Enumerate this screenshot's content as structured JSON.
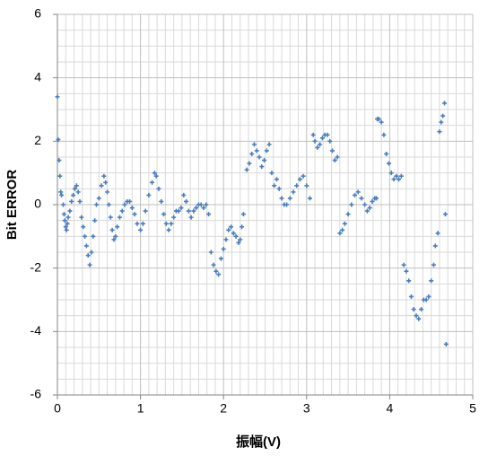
{
  "chart_data": {
    "type": "scatter",
    "xlabel": "振幅(V)",
    "ylabel": "Bit ERROR",
    "xlim": [
      0,
      5
    ],
    "xticks": [
      0,
      1,
      2,
      3,
      4,
      5
    ],
    "ylim": [
      -6,
      6
    ],
    "yticks": [
      -6,
      -4,
      -2,
      0,
      2,
      4,
      6
    ],
    "grid": true,
    "series": [
      {
        "color": "#4a7ebb",
        "x": [
          0,
          0.01,
          0.02,
          0.03,
          0.04,
          0.05,
          0.07,
          0.08,
          0.09,
          0.1,
          0.11,
          0.12,
          0.13,
          0.15,
          0.17,
          0.19,
          0.21,
          0.23,
          0.25,
          0.27,
          0.29,
          0.31,
          0.33,
          0.35,
          0.37,
          0.39,
          0.41,
          0.43,
          0.45,
          0.47,
          0.5,
          0.53,
          0.56,
          0.58,
          0.6,
          0.62,
          0.64,
          0.66,
          0.68,
          0.7,
          0.72,
          0.75,
          0.78,
          0.81,
          0.84,
          0.87,
          0.9,
          0.93,
          0.96,
          1.0,
          1.03,
          1.06,
          1.1,
          1.14,
          1.17,
          1.19,
          1.22,
          1.25,
          1.28,
          1.31,
          1.34,
          1.37,
          1.4,
          1.43,
          1.46,
          1.49,
          1.52,
          1.55,
          1.58,
          1.61,
          1.64,
          1.67,
          1.7,
          1.73,
          1.76,
          1.79,
          1.82,
          1.85,
          1.88,
          1.91,
          1.94,
          1.97,
          2.0,
          2.03,
          2.06,
          2.09,
          2.12,
          2.15,
          2.18,
          2.2,
          2.22,
          2.24,
          2.28,
          2.31,
          2.34,
          2.37,
          2.4,
          2.43,
          2.46,
          2.49,
          2.52,
          2.55,
          2.58,
          2.61,
          2.64,
          2.67,
          2.7,
          2.73,
          2.76,
          2.8,
          2.84,
          2.88,
          2.92,
          2.96,
          3.0,
          3.04,
          3.08,
          3.1,
          3.13,
          3.16,
          3.19,
          3.22,
          3.25,
          3.28,
          3.31,
          3.34,
          3.37,
          3.4,
          3.43,
          3.46,
          3.5,
          3.54,
          3.58,
          3.62,
          3.66,
          3.7,
          3.73,
          3.76,
          3.79,
          3.82,
          3.84,
          3.85,
          3.87,
          3.9,
          3.93,
          3.96,
          3.99,
          4.02,
          4.05,
          4.08,
          4.11,
          4.14,
          4.17,
          4.2,
          4.23,
          4.26,
          4.29,
          4.32,
          4.35,
          4.38,
          4.41,
          4.44,
          4.47,
          4.5,
          4.53,
          4.55,
          4.58,
          4.6,
          4.62,
          4.64,
          4.66,
          4.67,
          4.68
        ],
        "values": [
          3.4,
          2.05,
          1.4,
          0.9,
          0.4,
          0.3,
          0,
          -0.3,
          -0.5,
          -0.7,
          -0.8,
          -0.6,
          -0.4,
          -0.2,
          0.1,
          0.3,
          0.5,
          0.6,
          0.4,
          0.1,
          -0.4,
          -0.7,
          -1.0,
          -1.3,
          -1.6,
          -1.9,
          -1.5,
          -1.0,
          -0.5,
          0,
          0.2,
          0.6,
          0.9,
          0.7,
          0.4,
          0,
          -0.4,
          -0.8,
          -1.1,
          -1.0,
          -0.7,
          -0.4,
          -0.2,
          0,
          0.1,
          0.1,
          -0.1,
          -0.3,
          -0.6,
          -0.8,
          -0.6,
          -0.2,
          0.3,
          0.7,
          1.0,
          0.9,
          0.5,
          0.1,
          -0.3,
          -0.6,
          -0.8,
          -0.6,
          -0.4,
          -0.2,
          -0.2,
          -0.1,
          0.3,
          0.1,
          -0.2,
          -0.4,
          -0.2,
          -0.1,
          0,
          0,
          -0.1,
          0,
          -0.3,
          -1.5,
          -1.9,
          -2.1,
          -2.2,
          -1.7,
          -1.4,
          -1.1,
          -0.8,
          -0.7,
          -0.9,
          -1.0,
          -1.2,
          -1.1,
          -0.7,
          -0.3,
          1.1,
          1.3,
          1.6,
          1.9,
          1.7,
          1.5,
          1.2,
          1.4,
          1.7,
          1.9,
          1.0,
          0.6,
          0.8,
          0.5,
          0.2,
          0,
          0,
          0.2,
          0.4,
          0.6,
          0.8,
          0.9,
          0.6,
          0.2,
          2.2,
          2.0,
          1.8,
          1.9,
          2.1,
          2.2,
          2.2,
          2.0,
          1.7,
          1.4,
          1.5,
          -0.9,
          -0.8,
          -0.6,
          -0.3,
          0,
          0.3,
          0.4,
          0.2,
          0,
          -0.2,
          -0.1,
          0.1,
          0.2,
          0.2,
          2.7,
          2.7,
          2.6,
          2.2,
          1.6,
          1.3,
          1.0,
          0.8,
          0.9,
          0.8,
          0.9,
          -1.9,
          -2.1,
          -2.4,
          -2.9,
          -3.3,
          -3.5,
          -3.6,
          -3.3,
          -3.0,
          -3.0,
          -2.9,
          -2.4,
          -1.9,
          -1.3,
          -0.9,
          2.3,
          2.6,
          2.8,
          3.2,
          -0.3,
          -4.4
        ]
      }
    ]
  }
}
